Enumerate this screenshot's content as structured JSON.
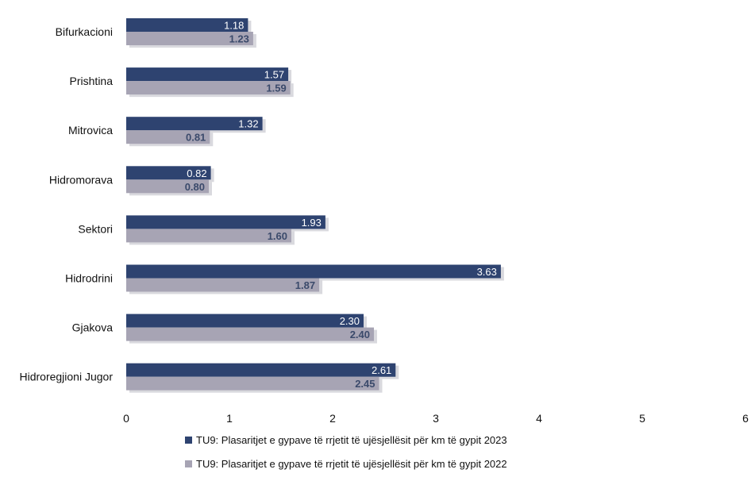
{
  "chart_data": {
    "type": "bar",
    "orientation": "horizontal",
    "categories": [
      "Bifurkacioni",
      "Prishtina",
      "Mitrovica",
      "Hidromorava",
      "Sektori",
      "Hidrodrini",
      "Gjakova",
      "Hidroregjioni Jugor"
    ],
    "series": [
      {
        "name": "TU9: Plasaritjet e gypave të rrjetit të ujësjellësit për km të gypit  2023",
        "values": [
          1.18,
          1.57,
          1.32,
          0.82,
          1.93,
          3.63,
          2.3,
          2.61
        ],
        "labels": [
          "1.18",
          "1.57",
          "1.32",
          "0.82",
          "1.93",
          "3.63",
          "2.30",
          "2.61"
        ],
        "color": "#2e4370"
      },
      {
        "name": "TU9: Plasaritjet e gypave të rrjetit të ujësjellësit për km të gypit  2022",
        "values": [
          1.23,
          1.59,
          0.81,
          0.8,
          1.6,
          1.87,
          2.4,
          2.45
        ],
        "labels": [
          "1.23",
          "1.59",
          "0.81",
          "0.80",
          "1.60",
          "1.87",
          "2.40",
          "2.45"
        ],
        "color": "#a7a4b4"
      }
    ],
    "xlim": [
      0,
      6
    ],
    "xticks": [
      "0",
      "1",
      "2",
      "3",
      "4",
      "5",
      "6"
    ],
    "grid": false,
    "legend_position": "bottom"
  }
}
